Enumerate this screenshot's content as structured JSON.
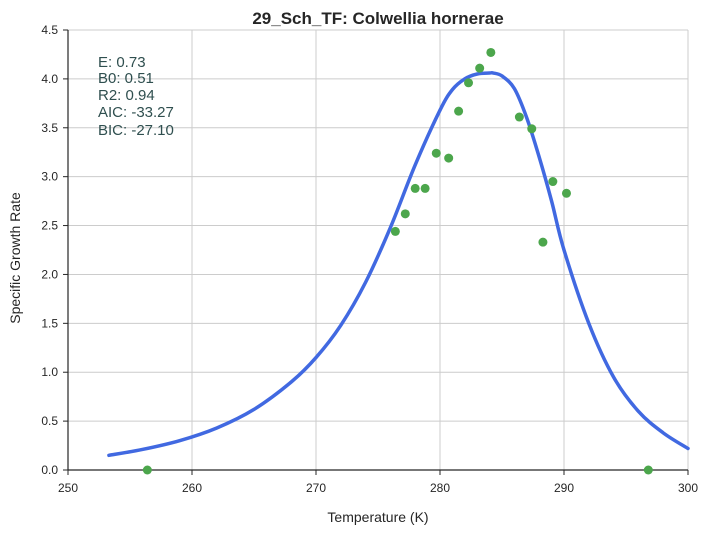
{
  "chart_data": {
    "type": "scatter",
    "title": "29_Sch_TF: Colwellia hornerae",
    "xlabel": "Temperature (K)",
    "ylabel": "Specific Growth Rate",
    "xlim": [
      250,
      300
    ],
    "ylim": [
      0,
      4.5
    ],
    "xticks": [
      "250",
      "260",
      "270",
      "280",
      "290",
      "300"
    ],
    "yticks": [
      "0.0",
      "0.5",
      "1.0",
      "1.5",
      "2.0",
      "2.5",
      "3.0",
      "3.5",
      "4.0",
      "4.5"
    ],
    "grid": true,
    "stats": [
      "E:  0.73",
      "B0:  0.51",
      "R2:  0.94",
      "AIC: -33.27",
      "BIC: -27.10"
    ],
    "colors": {
      "points": "#4ca64c",
      "curve": "#4169e1",
      "stats": "#2f4f4f",
      "grid": "#cccccc"
    },
    "points": {
      "x": [
        256.4,
        276.4,
        277.2,
        278.0,
        278.8,
        279.7,
        280.7,
        281.5,
        282.3,
        283.2,
        284.1,
        286.4,
        287.4,
        288.3,
        289.1,
        290.2,
        296.8
      ],
      "y": [
        0.0,
        2.44,
        2.62,
        2.88,
        2.88,
        3.24,
        3.19,
        3.67,
        3.96,
        4.11,
        4.27,
        3.61,
        3.49,
        2.33,
        2.95,
        2.83,
        0.0
      ]
    },
    "curve": {
      "x": [
        253.3,
        256,
        259,
        262,
        265,
        268,
        270,
        272,
        274,
        276,
        278,
        280,
        281,
        282,
        283,
        284,
        284.3,
        285,
        286,
        287,
        288,
        289,
        290,
        292,
        294,
        296,
        298,
        300
      ],
      "y": [
        0.15,
        0.21,
        0.3,
        0.43,
        0.62,
        0.9,
        1.15,
        1.48,
        1.92,
        2.48,
        3.12,
        3.68,
        3.89,
        4.0,
        4.05,
        4.06,
        4.06,
        4.03,
        3.9,
        3.6,
        3.2,
        2.75,
        2.25,
        1.5,
        0.95,
        0.6,
        0.38,
        0.22
      ]
    }
  }
}
